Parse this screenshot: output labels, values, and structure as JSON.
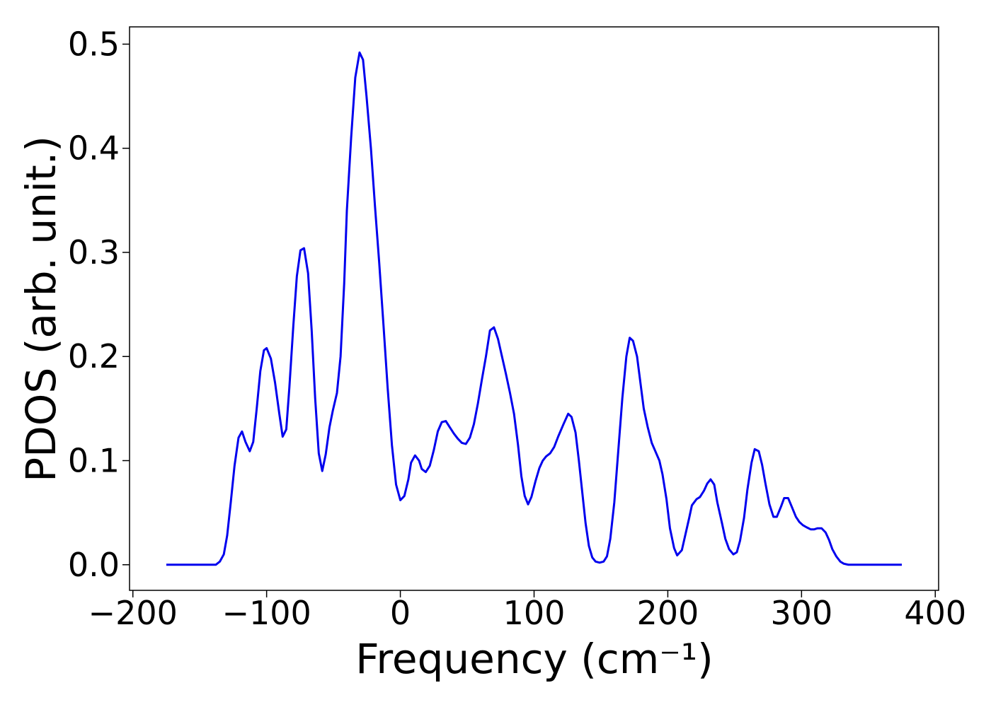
{
  "chart_data": {
    "type": "line",
    "xlabel": "Frequency (cm⁻¹)",
    "ylabel": "PDOS (arb. unit.)",
    "color": "#0000ee",
    "x": [
      -175,
      -138,
      -135,
      -132,
      -129.5,
      -126.8,
      -124,
      -121,
      -118.4,
      -115.8,
      -112.6,
      -110,
      -107.4,
      -104.7,
      -102,
      -100,
      -96.8,
      -93.7,
      -90.5,
      -88,
      -85.3,
      -83,
      -80,
      -77.4,
      -74.7,
      -72,
      -69,
      -66.3,
      -63.7,
      -61,
      -58.4,
      -55.8,
      -53,
      -50.5,
      -47.4,
      -44.7,
      -42,
      -40,
      -36.8,
      -33.7,
      -30.5,
      -27.9,
      -25.3,
      -22,
      -19,
      -15.8,
      -12.6,
      -9.5,
      -6.3,
      -3.2,
      0,
      3,
      6,
      8,
      11,
      14,
      16,
      19,
      22,
      25,
      28,
      31,
      34,
      37,
      40,
      43,
      46,
      49,
      52,
      55,
      58,
      61,
      64,
      67,
      70,
      73,
      76,
      79,
      82,
      85,
      88,
      90.5,
      93,
      95.5,
      98,
      101,
      104,
      106.5,
      109,
      112,
      115,
      118,
      122,
      125.5,
      128,
      131,
      133.5,
      136,
      138.5,
      141,
      143.5,
      146,
      149,
      152,
      154.5,
      157,
      160,
      163,
      166,
      169,
      171.5,
      174,
      177,
      182,
      185,
      188,
      193.7,
      196,
      199,
      201.6,
      204.7,
      207,
      210.5,
      216,
      218,
      221.5,
      224,
      227,
      229.5,
      232,
      234.7,
      237,
      240.5,
      243,
      245.8,
      249,
      251.6,
      254,
      257,
      259.5,
      262.6,
      265,
      268,
      270.5,
      273,
      276,
      279,
      281.5,
      284.7,
      287,
      290,
      292.6,
      295.8,
      298.4,
      301,
      303.7,
      306.8,
      309.5,
      312,
      315,
      318,
      320.5,
      323,
      326,
      329,
      331.6,
      335,
      375
    ],
    "values": [
      0,
      0,
      0.003,
      0.01,
      0.028,
      0.06,
      0.095,
      0.122,
      0.128,
      0.118,
      0.109,
      0.118,
      0.15,
      0.186,
      0.206,
      0.208,
      0.198,
      0.175,
      0.145,
      0.123,
      0.13,
      0.17,
      0.23,
      0.277,
      0.302,
      0.304,
      0.28,
      0.225,
      0.16,
      0.107,
      0.09,
      0.106,
      0.132,
      0.148,
      0.165,
      0.2,
      0.27,
      0.34,
      0.41,
      0.468,
      0.492,
      0.485,
      0.45,
      0.4,
      0.345,
      0.29,
      0.23,
      0.17,
      0.115,
      0.077,
      0.062,
      0.066,
      0.082,
      0.098,
      0.105,
      0.1,
      0.092,
      0.089,
      0.095,
      0.11,
      0.128,
      0.137,
      0.138,
      0.132,
      0.126,
      0.121,
      0.117,
      0.116,
      0.122,
      0.135,
      0.155,
      0.178,
      0.2,
      0.225,
      0.228,
      0.217,
      0.2,
      0.183,
      0.165,
      0.145,
      0.115,
      0.085,
      0.066,
      0.058,
      0.065,
      0.08,
      0.093,
      0.1,
      0.104,
      0.107,
      0.113,
      0.123,
      0.135,
      0.145,
      0.142,
      0.127,
      0.1,
      0.07,
      0.04,
      0.018,
      0.007,
      0.003,
      0.002,
      0.003,
      0.008,
      0.025,
      0.06,
      0.11,
      0.16,
      0.2,
      0.218,
      0.215,
      0.2,
      0.15,
      0.132,
      0.117,
      0.1,
      0.087,
      0.063,
      0.035,
      0.016,
      0.009,
      0.014,
      0.045,
      0.057,
      0.063,
      0.065,
      0.071,
      0.078,
      0.082,
      0.077,
      0.06,
      0.04,
      0.025,
      0.015,
      0.01,
      0.012,
      0.023,
      0.045,
      0.072,
      0.098,
      0.111,
      0.109,
      0.096,
      0.078,
      0.058,
      0.046,
      0.046,
      0.056,
      0.064,
      0.064,
      0.056,
      0.046,
      0.041,
      0.038,
      0.036,
      0.034,
      0.034,
      0.035,
      0.035,
      0.031,
      0.024,
      0.015,
      0.008,
      0.003,
      0.001,
      0,
      0
    ],
    "xlim": [
      -202.5,
      402.5
    ],
    "ylim": [
      -0.0246,
      0.5166
    ],
    "xticks": [
      {
        "value": -200,
        "label": "−200"
      },
      {
        "value": -100,
        "label": "−100"
      },
      0,
      100,
      200,
      300,
      400
    ],
    "yticks": [
      {
        "value": 0,
        "label": "0.0"
      },
      0.1,
      0.2,
      0.3,
      0.4,
      0.5
    ],
    "grid": false
  }
}
